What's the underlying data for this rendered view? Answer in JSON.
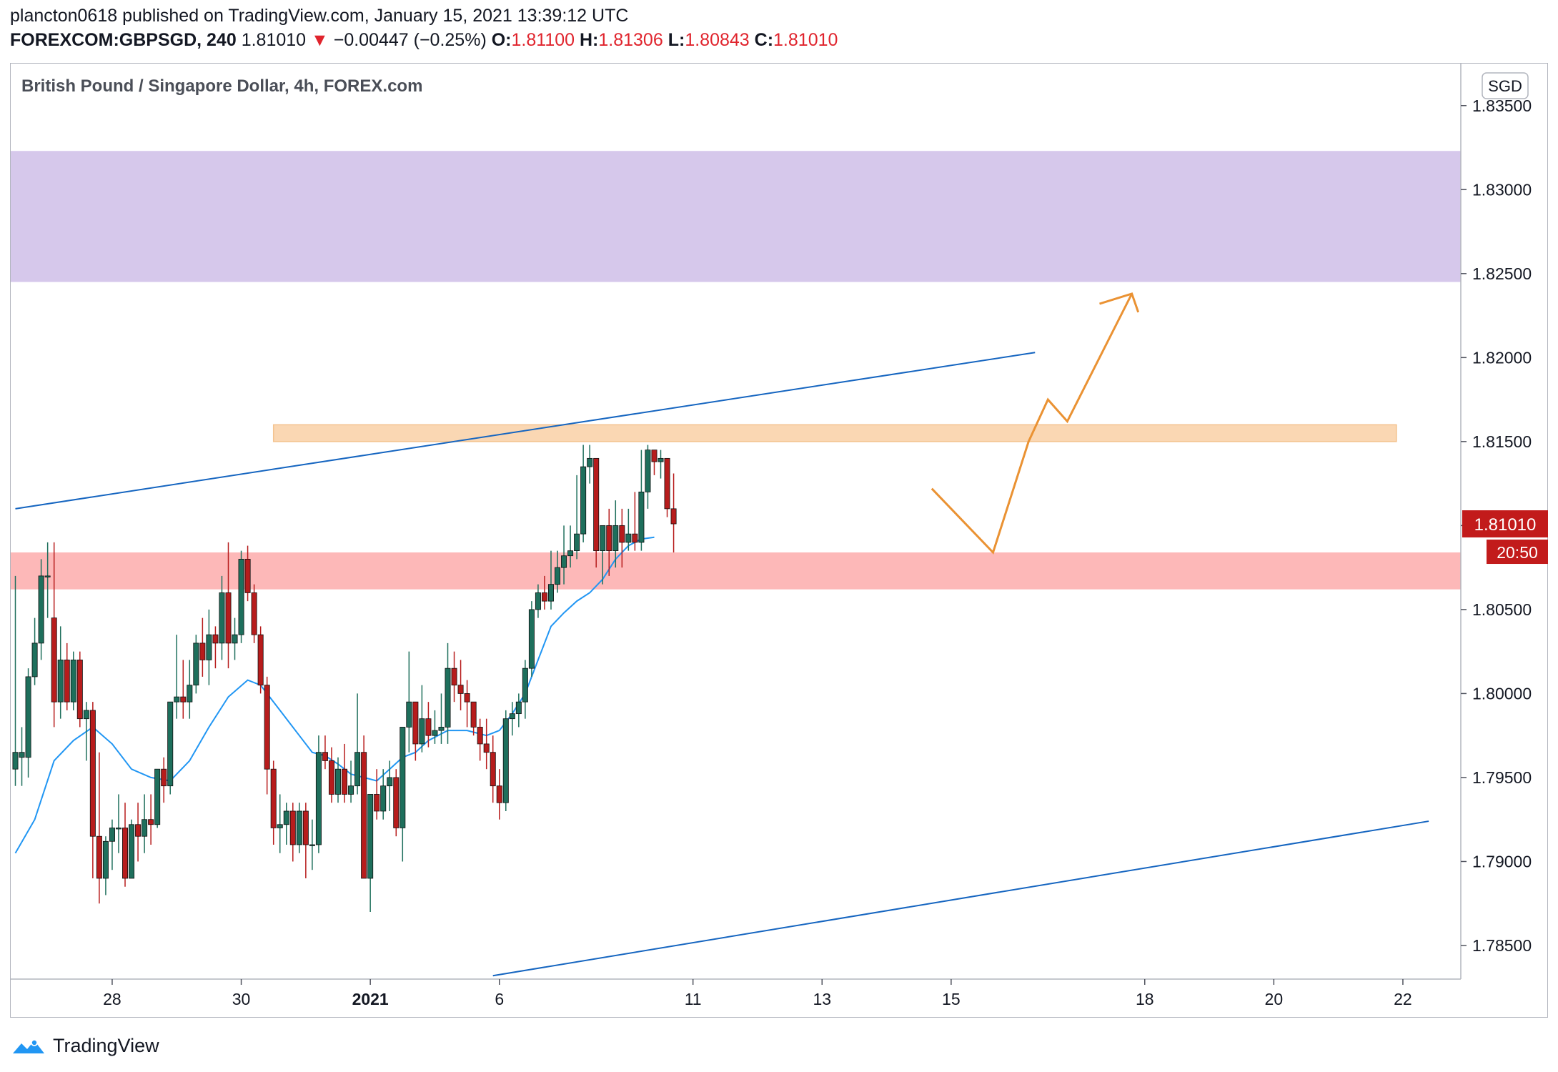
{
  "header": {
    "line1": "plancton0618 published on TradingView.com, January 15, 2021 13:39:12 UTC",
    "symbol": "FOREXCOM:GBPSGD, 240",
    "last": "1.81010",
    "arrow": "▼",
    "change": "−0.00447 (−0.25%)",
    "o_label": "O:",
    "o_value": "1.81100",
    "h_label": "H:",
    "h_value": "1.81306",
    "l_label": "L:",
    "l_value": "1.80843",
    "c_label": "C:",
    "c_value": "1.81010"
  },
  "footer": {
    "brand": "TradingView",
    "logo_icon": "tradingview-logo-icon"
  },
  "colors": {
    "up": "#1e6f5c",
    "down": "#b71c1c",
    "ma": "#2196f3",
    "channel": "#1565c0",
    "resistance_zone": "#d6c8eb",
    "supply_zone": "#fad7b3",
    "support_zone": "#fdb8b8",
    "projection": "#ea9233",
    "price_tag": "#c21b1b"
  },
  "chart_data": {
    "type": "candlestick",
    "title": "British Pound / Singapore Dollar, 4h, FOREX.com",
    "currency": "SGD",
    "ylim": [
      1.783,
      1.8375
    ],
    "y_ticks": [
      1.835,
      1.83,
      1.825,
      1.82,
      1.815,
      1.81,
      1.805,
      1.8,
      1.795,
      1.79,
      1.785
    ],
    "y_tick_labels": [
      "1.83500",
      "1.83000",
      "1.82500",
      "1.82000",
      "1.81500",
      "1.81000",
      "1.80500",
      "1.80000",
      "1.79500",
      "1.79000",
      "1.78500"
    ],
    "x_ticks": [
      {
        "label": "28",
        "bar": 15
      },
      {
        "label": "30",
        "bar": 35
      },
      {
        "label": "2021",
        "bar": 55,
        "bold": true
      },
      {
        "label": "6",
        "bar": 75
      },
      {
        "label": "11",
        "bar": 105
      },
      {
        "label": "13",
        "bar": 125
      },
      {
        "label": "15",
        "bar": 145
      },
      {
        "label": "18",
        "bar": 175
      },
      {
        "label": "20",
        "bar": 195
      },
      {
        "label": "22",
        "bar": 215
      }
    ],
    "candles": [
      [
        1.7955,
        1.7965,
        1.7945,
        1.807
      ],
      [
        1.7962,
        1.7965,
        1.7945,
        1.798
      ],
      [
        1.7962,
        1.801,
        1.795,
        1.8015
      ],
      [
        1.801,
        1.803,
        1.8005,
        1.8045
      ],
      [
        1.803,
        1.807,
        1.802,
        1.808
      ],
      [
        1.807,
        1.807,
        1.8045,
        1.809
      ],
      [
        1.8045,
        1.7995,
        1.798,
        1.809
      ],
      [
        1.7995,
        1.802,
        1.7985,
        1.804
      ],
      [
        1.802,
        1.7995,
        1.799,
        1.803
      ],
      [
        1.7995,
        1.802,
        1.799,
        1.8025
      ],
      [
        1.802,
        1.7985,
        1.798,
        1.8025
      ],
      [
        1.7985,
        1.799,
        1.796,
        1.7995
      ],
      [
        1.799,
        1.7915,
        1.789,
        1.7995
      ],
      [
        1.7915,
        1.789,
        1.7875,
        1.7965
      ],
      [
        1.789,
        1.7912,
        1.788,
        1.7915
      ],
      [
        1.7912,
        1.792,
        1.7895,
        1.7925
      ],
      [
        1.792,
        1.792,
        1.7905,
        1.794
      ],
      [
        1.792,
        1.789,
        1.7885,
        1.7935
      ],
      [
        1.789,
        1.7922,
        1.789,
        1.7925
      ],
      [
        1.7922,
        1.7915,
        1.79,
        1.7935
      ],
      [
        1.7915,
        1.7925,
        1.7905,
        1.794
      ],
      [
        1.7925,
        1.7922,
        1.791,
        1.794
      ],
      [
        1.7922,
        1.7955,
        1.792,
        1.7955
      ],
      [
        1.7955,
        1.7945,
        1.7935,
        1.7962
      ],
      [
        1.7945,
        1.7995,
        1.794,
        1.7995
      ],
      [
        1.7995,
        1.7998,
        1.7985,
        1.8035
      ],
      [
        1.7998,
        1.7995,
        1.7985,
        1.802
      ],
      [
        1.7995,
        1.8005,
        1.7985,
        1.802
      ],
      [
        1.8005,
        1.803,
        1.8,
        1.8035
      ],
      [
        1.803,
        1.802,
        1.801,
        1.8045
      ],
      [
        1.802,
        1.8035,
        1.8005,
        1.805
      ],
      [
        1.8035,
        1.803,
        1.8015,
        1.804
      ],
      [
        1.803,
        1.806,
        1.802,
        1.807
      ],
      [
        1.806,
        1.803,
        1.8015,
        1.809
      ],
      [
        1.803,
        1.8035,
        1.802,
        1.8045
      ],
      [
        1.8035,
        1.808,
        1.803,
        1.8085
      ],
      [
        1.808,
        1.806,
        1.8055,
        1.8088
      ],
      [
        1.806,
        1.8035,
        1.803,
        1.8065
      ],
      [
        1.8035,
        1.8005,
        1.8,
        1.804
      ],
      [
        1.8005,
        1.7955,
        1.794,
        1.801
      ],
      [
        1.7955,
        1.792,
        1.791,
        1.796
      ],
      [
        1.792,
        1.7922,
        1.7905,
        1.794
      ],
      [
        1.7922,
        1.793,
        1.791,
        1.7935
      ],
      [
        1.793,
        1.791,
        1.79,
        1.7935
      ],
      [
        1.791,
        1.793,
        1.7905,
        1.7935
      ],
      [
        1.793,
        1.791,
        1.789,
        1.7935
      ],
      [
        1.791,
        1.791,
        1.7895,
        1.7925
      ],
      [
        1.791,
        1.7965,
        1.7905,
        1.7975
      ],
      [
        1.7965,
        1.796,
        1.7955,
        1.7975
      ],
      [
        1.796,
        1.794,
        1.7935,
        1.7968
      ],
      [
        1.794,
        1.7955,
        1.7935,
        1.7962
      ],
      [
        1.7955,
        1.794,
        1.7935,
        1.797
      ],
      [
        1.794,
        1.7945,
        1.7935,
        1.796
      ],
      [
        1.7945,
        1.7965,
        1.794,
        1.8
      ],
      [
        1.7965,
        1.789,
        1.789,
        1.7975
      ],
      [
        1.789,
        1.794,
        1.787,
        1.794
      ],
      [
        1.794,
        1.793,
        1.7925,
        1.7955
      ],
      [
        1.793,
        1.7945,
        1.7925,
        1.7955
      ],
      [
        1.7945,
        1.795,
        1.793,
        1.796
      ],
      [
        1.795,
        1.792,
        1.7915,
        1.7955
      ],
      [
        1.792,
        1.798,
        1.79,
        1.798
      ],
      [
        1.798,
        1.7995,
        1.7965,
        1.8025
      ],
      [
        1.7995,
        1.797,
        1.796,
        1.7995
      ],
      [
        1.797,
        1.7985,
        1.7965,
        1.8005
      ],
      [
        1.7985,
        1.7975,
        1.7968,
        1.7995
      ],
      [
        1.7975,
        1.7978,
        1.797,
        1.799
      ],
      [
        1.7978,
        1.798,
        1.797,
        1.8
      ],
      [
        1.798,
        1.8015,
        1.797,
        1.803
      ],
      [
        1.8015,
        1.8005,
        1.7995,
        1.8025
      ],
      [
        1.8005,
        1.8,
        1.799,
        1.802
      ],
      [
        1.8,
        1.7995,
        1.798,
        1.8008
      ],
      [
        1.7995,
        1.798,
        1.7975,
        1.7995
      ],
      [
        1.798,
        1.797,
        1.796,
        1.7985
      ],
      [
        1.797,
        1.7965,
        1.7955,
        1.7985
      ],
      [
        1.7965,
        1.7945,
        1.7935,
        1.7975
      ],
      [
        1.7945,
        1.7935,
        1.7925,
        1.7955
      ],
      [
        1.7935,
        1.7985,
        1.793,
        1.799
      ],
      [
        1.7985,
        1.7988,
        1.7975,
        1.7995
      ],
      [
        1.7988,
        1.7995,
        1.798,
        1.8
      ],
      [
        1.7995,
        1.8015,
        1.7985,
        1.802
      ],
      [
        1.8015,
        1.805,
        1.801,
        1.8055
      ],
      [
        1.805,
        1.806,
        1.8045,
        1.8065
      ],
      [
        1.806,
        1.8055,
        1.805,
        1.807
      ],
      [
        1.8055,
        1.8065,
        1.805,
        1.8085
      ],
      [
        1.8065,
        1.8075,
        1.806,
        1.8085
      ],
      [
        1.8075,
        1.8082,
        1.8065,
        1.81
      ],
      [
        1.8082,
        1.8085,
        1.8075,
        1.81
      ],
      [
        1.8085,
        1.8095,
        1.808,
        1.813
      ],
      [
        1.8095,
        1.8135,
        1.809,
        1.8148
      ],
      [
        1.8135,
        1.814,
        1.8125,
        1.8148
      ],
      [
        1.814,
        1.8085,
        1.8075,
        1.814
      ],
      [
        1.8085,
        1.81,
        1.8065,
        1.81
      ],
      [
        1.81,
        1.8085,
        1.807,
        1.811
      ],
      [
        1.8085,
        1.81,
        1.8075,
        1.8115
      ],
      [
        1.81,
        1.809,
        1.8075,
        1.811
      ],
      [
        1.809,
        1.8095,
        1.8085,
        1.811
      ],
      [
        1.8095,
        1.809,
        1.8085,
        1.812
      ],
      [
        1.809,
        1.812,
        1.8085,
        1.8145
      ],
      [
        1.812,
        1.8145,
        1.811,
        1.8148
      ],
      [
        1.8145,
        1.8138,
        1.813,
        1.8145
      ],
      [
        1.8138,
        1.814,
        1.8128,
        1.8145
      ],
      [
        1.814,
        1.811,
        1.8105,
        1.814
      ],
      [
        1.811,
        1.8101,
        1.8084,
        1.8131
      ]
    ],
    "ma_period": 20,
    "ma": [
      [
        0,
        1.7905
      ],
      [
        3,
        1.7925
      ],
      [
        6,
        1.796
      ],
      [
        9,
        1.7972
      ],
      [
        12,
        1.798
      ],
      [
        15,
        1.797
      ],
      [
        18,
        1.7955
      ],
      [
        21,
        1.795
      ],
      [
        24,
        1.7948
      ],
      [
        27,
        1.796
      ],
      [
        30,
        1.798
      ],
      [
        33,
        1.7998
      ],
      [
        36,
        1.8008
      ],
      [
        38,
        1.8005
      ],
      [
        41,
        1.799
      ],
      [
        44,
        1.7975
      ],
      [
        46,
        1.7965
      ],
      [
        48,
        1.7963
      ],
      [
        50,
        1.7958
      ],
      [
        52,
        1.7952
      ],
      [
        54,
        1.795
      ],
      [
        56,
        1.7948
      ],
      [
        58,
        1.7955
      ],
      [
        60,
        1.7962
      ],
      [
        62,
        1.7965
      ],
      [
        64,
        1.7972
      ],
      [
        67,
        1.7978
      ],
      [
        70,
        1.7978
      ],
      [
        73,
        1.7975
      ],
      [
        75,
        1.7978
      ],
      [
        77,
        1.7988
      ],
      [
        79,
        1.8
      ],
      [
        81,
        1.802
      ],
      [
        83,
        1.804
      ],
      [
        85,
        1.8048
      ],
      [
        87,
        1.8055
      ],
      [
        89,
        1.806
      ],
      [
        91,
        1.8068
      ],
      [
        93,
        1.808
      ],
      [
        95,
        1.8088
      ],
      [
        97,
        1.8092
      ],
      [
        99,
        1.8093
      ]
    ],
    "zones": [
      {
        "name": "resistance-zone",
        "top": 1.8323,
        "bottom": 1.8245
      },
      {
        "name": "supply-zone",
        "top": 1.816,
        "bottom": 1.815,
        "from_bar": 40,
        "to_bar": 214
      },
      {
        "name": "support-zone",
        "top": 1.8084,
        "bottom": 1.8062
      }
    ],
    "channel_lines": [
      {
        "name": "channel-upper-line",
        "from": [
          0,
          1.811
        ],
        "to": [
          158,
          1.8203
        ]
      },
      {
        "name": "channel-lower-line",
        "from": [
          74,
          1.7832
        ],
        "to": [
          219,
          1.7924
        ]
      }
    ],
    "projection": {
      "points": [
        [
          142,
          1.8122
        ],
        [
          151.5,
          1.8084
        ],
        [
          157,
          1.815
        ],
        [
          160,
          1.8175
        ],
        [
          163,
          1.8162
        ],
        [
          173,
          1.8238
        ]
      ],
      "arrowhead": [
        [
          168,
          1.8232
        ],
        [
          173,
          1.8238
        ],
        [
          174,
          1.8227
        ]
      ]
    },
    "price_tag": {
      "value": 1.8101,
      "label": "1.81010",
      "countdown": "20:50"
    },
    "grid": false
  }
}
